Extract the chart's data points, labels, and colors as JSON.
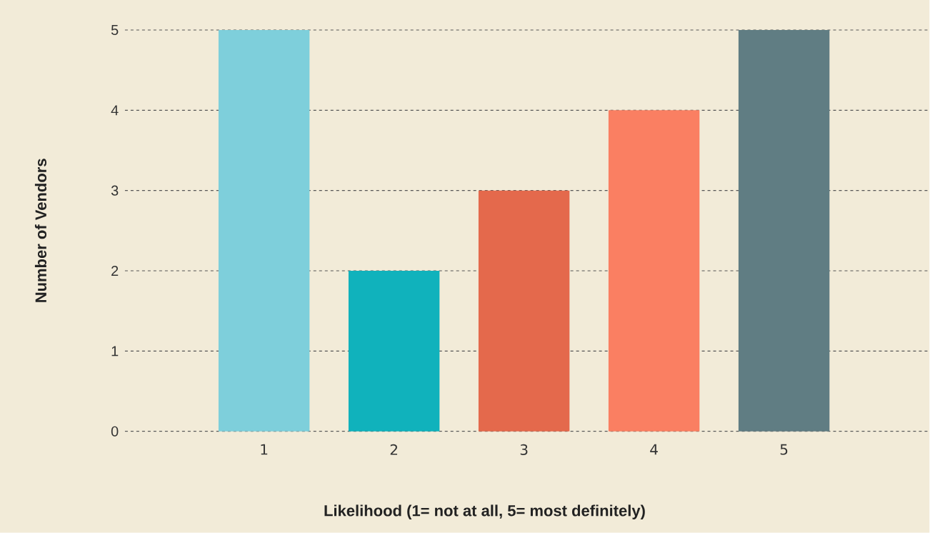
{
  "chart_data": {
    "type": "bar",
    "xlabel": "Likelihood (1= not at all, 5= most definitely)",
    "ylabel": "Number of Vendors",
    "categories": [
      "1",
      "2",
      "3",
      "4",
      "5"
    ],
    "values": [
      5,
      2,
      3,
      4,
      5
    ],
    "colors": [
      "#7ecfdb",
      "#10b2bc",
      "#e4694c",
      "#fa7f62",
      "#607d83"
    ],
    "ylim": [
      0,
      5
    ],
    "yticks": [
      0,
      1,
      2,
      3,
      4,
      5
    ],
    "grid": "y"
  }
}
